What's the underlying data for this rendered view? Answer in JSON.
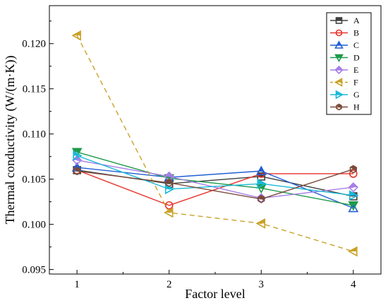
{
  "chart_data": {
    "type": "line",
    "xlabel": "Factor level",
    "ylabel": "Thermal conductivity (W/(m·K))",
    "x": [
      1,
      2,
      3,
      4
    ],
    "xlim": [
      0.7,
      4.3
    ],
    "ylim": [
      0.0945,
      0.1242
    ],
    "xticks": [
      "1",
      "2",
      "3",
      "4"
    ],
    "yticks": [
      "0.095",
      "0.100",
      "0.105",
      "0.110",
      "0.115",
      "0.120"
    ],
    "ytick_values": [
      0.095,
      0.1,
      0.105,
      0.11,
      0.115,
      0.12
    ],
    "grid": false,
    "legend_position": "top-right",
    "series": [
      {
        "name": "A",
        "values": [
          0.106,
          0.1045,
          0.1053,
          0.1031
        ],
        "color": "#404040",
        "marker": "square",
        "dash": false
      },
      {
        "name": "B",
        "values": [
          0.106,
          0.1021,
          0.1056,
          0.1056
        ],
        "color": "#e8312a",
        "marker": "circle",
        "dash": false
      },
      {
        "name": "C",
        "values": [
          0.1063,
          0.1052,
          0.1059,
          0.1018
        ],
        "color": "#1f5fd6",
        "marker": "triangle-up",
        "dash": false
      },
      {
        "name": "D",
        "values": [
          0.108,
          0.1051,
          0.104,
          0.1021
        ],
        "color": "#1e9b4b",
        "marker": "triangle-down",
        "dash": false
      },
      {
        "name": "E",
        "values": [
          0.1071,
          0.1053,
          0.1029,
          0.1041
        ],
        "color": "#a77de8",
        "marker": "diamond",
        "dash": false
      },
      {
        "name": "F",
        "values": [
          0.1209,
          0.1013,
          0.1001,
          0.097
        ],
        "color": "#c9a227",
        "marker": "triangle-left",
        "dash": true
      },
      {
        "name": "G",
        "values": [
          0.1076,
          0.1039,
          0.1045,
          0.1032
        ],
        "color": "#19b9d8",
        "marker": "triangle-right",
        "dash": false
      },
      {
        "name": "H",
        "values": [
          0.1059,
          0.1046,
          0.1028,
          0.1061
        ],
        "color": "#7a4a3a",
        "marker": "hexagon",
        "dash": false
      }
    ]
  }
}
